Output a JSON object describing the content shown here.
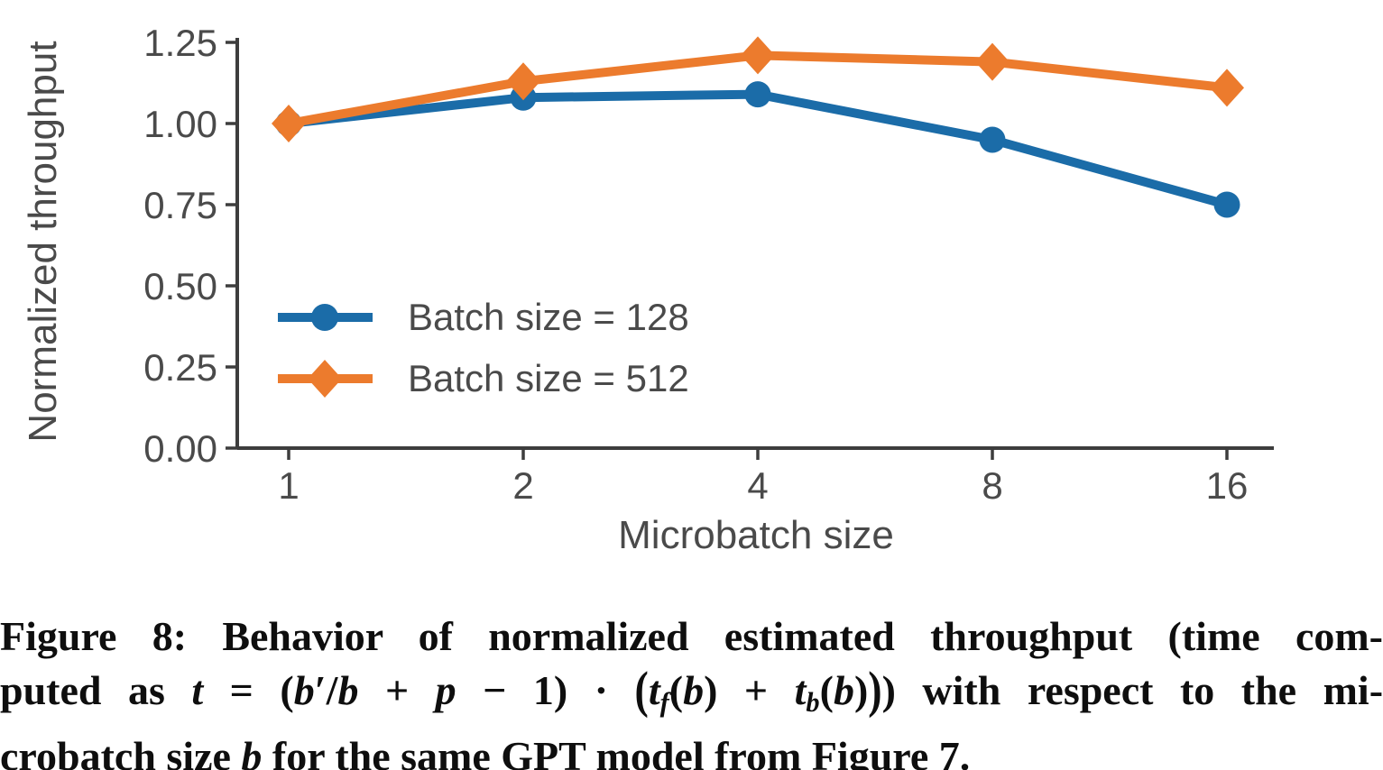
{
  "chart_data": {
    "type": "line",
    "title": "",
    "xlabel": "Microbatch size",
    "ylabel": "Normalized throughput",
    "x_scale": "log2",
    "x": [
      1,
      2,
      4,
      8,
      16
    ],
    "x_tick_labels": [
      "1",
      "2",
      "4",
      "8",
      "16"
    ],
    "y_ticks": [
      0,
      0.25,
      0.5,
      0.75,
      1.0,
      1.25
    ],
    "y_tick_labels": [
      "0.00",
      "0.25",
      "0.50",
      "0.75",
      "1.00",
      "1.25"
    ],
    "ylim": [
      0,
      1.25
    ],
    "grid": false,
    "legend_position": "lower left inside",
    "series": [
      {
        "name": "Batch size = 128",
        "marker": "circle",
        "color": "#1b6ca8",
        "values": [
          1.0,
          1.08,
          1.09,
          0.95,
          0.75
        ]
      },
      {
        "name": "Batch size = 512",
        "marker": "diamond",
        "color": "#ec7b2d",
        "values": [
          1.0,
          1.13,
          1.21,
          1.19,
          1.11
        ]
      }
    ]
  },
  "colors": {
    "axis": "#3d3d3d",
    "tick_text": "#4a4a4a",
    "caption_text": "#0e0e0e",
    "background": "#ffffff"
  },
  "caption": {
    "label": "Figure 8",
    "lines": [
      [
        {
          "t": "Figure 8: Behavior of normalized estimated throughput (time com-",
          "s": "r"
        }
      ],
      [
        {
          "t": "puted as ",
          "s": "r"
        },
        {
          "t": "t",
          "s": "m"
        },
        {
          "t": " = (",
          "s": "r"
        },
        {
          "t": "b",
          "s": "m"
        },
        {
          "t": "′/",
          "s": "r"
        },
        {
          "t": "b",
          "s": "m"
        },
        {
          "t": " + ",
          "s": "r"
        },
        {
          "t": "p",
          "s": "m"
        },
        {
          "t": " − 1) · ",
          "s": "r"
        },
        {
          "t": "(",
          "s": "big"
        },
        {
          "t": "t",
          "s": "m"
        },
        {
          "t": "f",
          "s": "sub"
        },
        {
          "t": "(",
          "s": "r"
        },
        {
          "t": "b",
          "s": "m"
        },
        {
          "t": ") + ",
          "s": "r"
        },
        {
          "t": "t",
          "s": "m"
        },
        {
          "t": "b",
          "s": "sub"
        },
        {
          "t": "(",
          "s": "r"
        },
        {
          "t": "b",
          "s": "m"
        },
        {
          "t": ")",
          "s": "r"
        },
        {
          "t": ")",
          "s": "big"
        },
        {
          "t": ") with respect to the mi-",
          "s": "r"
        }
      ],
      [
        {
          "t": "crobatch size ",
          "s": "r"
        },
        {
          "t": "b",
          "s": "m"
        },
        {
          "t": " for the same GPT model from Figure 7.",
          "s": "r"
        }
      ]
    ]
  }
}
